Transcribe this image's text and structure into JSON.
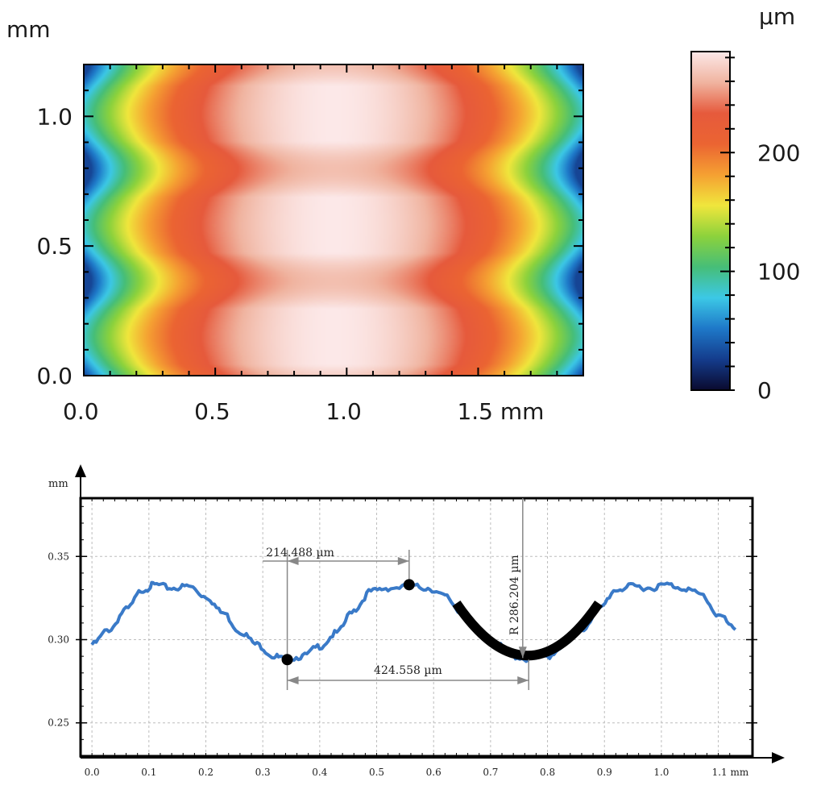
{
  "chart_data": [
    {
      "type": "heatmap",
      "y_unit_label": "mm",
      "x_axis": {
        "tick_labels": [
          "0.0",
          "0.5",
          "1.0",
          "1.5 mm"
        ],
        "ticks": [
          0.0,
          0.5,
          1.0,
          1.5
        ],
        "range": [
          0.0,
          1.9
        ]
      },
      "y_axis": {
        "tick_labels": [
          "0.0",
          "0.5",
          "1.0"
        ],
        "ticks": [
          0.0,
          0.5,
          1.0
        ],
        "range": [
          0.0,
          1.2
        ]
      },
      "colorbar": {
        "unit_label": "µm",
        "tick_labels": [
          "0",
          "100",
          "200"
        ],
        "ticks": [
          0,
          100,
          200
        ],
        "range": [
          0,
          285
        ]
      },
      "color_stops": [
        "#0a0a2e",
        "#143c8c",
        "#1e78c8",
        "#3cc8e6",
        "#46be78",
        "#8cd23c",
        "#f0e63c",
        "#f5a032",
        "#eb6432",
        "#e65a3c",
        "#f0b4a0",
        "#fce8e8"
      ],
      "surface": {
        "description_values": {
          "edge_height_um": 30,
          "peak_height_um": 285,
          "peak_x_mm": 0.95,
          "bump_rows_y_mm": [
            0.15,
            0.55,
            1.0
          ],
          "row_valley_y_mm": [
            0.35,
            0.8
          ]
        }
      }
    },
    {
      "type": "line",
      "y_unit_label": "mm",
      "x_unit_label": "1.1 mm",
      "x_axis": {
        "tick_labels": [
          "0.0",
          "0.1",
          "0.2",
          "0.3",
          "0.4",
          "0.5",
          "0.6",
          "0.7",
          "0.8",
          "0.9",
          "1.0"
        ],
        "ticks": [
          0.0,
          0.1,
          0.2,
          0.3,
          0.4,
          0.5,
          0.6,
          0.7,
          0.8,
          0.9,
          1.0,
          1.1
        ],
        "range": [
          -0.02,
          1.16
        ]
      },
      "y_axis": {
        "tick_labels": [
          "0.25",
          "0.30",
          "0.35"
        ],
        "ticks": [
          0.25,
          0.3,
          0.35
        ],
        "range": [
          0.23,
          0.385
        ]
      },
      "grid": true,
      "series": [
        {
          "x": [
            0.0,
            0.03,
            0.06,
            0.09,
            0.11,
            0.14,
            0.17,
            0.2,
            0.23,
            0.26,
            0.29,
            0.32,
            0.34,
            0.37,
            0.4,
            0.43,
            0.46,
            0.49,
            0.52,
            0.56,
            0.59,
            0.62,
            0.65,
            0.68,
            0.71,
            0.74,
            0.77,
            0.8,
            0.83,
            0.86,
            0.89,
            0.92,
            0.95,
            0.98,
            1.01,
            1.04,
            1.07,
            1.1,
            1.13
          ],
          "y": [
            0.297,
            0.306,
            0.318,
            0.33,
            0.333,
            0.331,
            0.332,
            0.326,
            0.316,
            0.305,
            0.297,
            0.29,
            0.288,
            0.29,
            0.296,
            0.304,
            0.318,
            0.329,
            0.331,
            0.332,
            0.331,
            0.326,
            0.316,
            0.305,
            0.297,
            0.29,
            0.288,
            0.29,
            0.297,
            0.306,
            0.318,
            0.33,
            0.332,
            0.331,
            0.333,
            0.331,
            0.327,
            0.315,
            0.306
          ],
          "color": "#3a7ac8"
        }
      ],
      "fit_arc": {
        "x": [
          0.64,
          0.89
        ],
        "center_x": 0.765,
        "bottom_y": 0.288,
        "color": "#000000"
      },
      "markers": [
        {
          "x": 0.343,
          "y": 0.288
        },
        {
          "x": 0.557,
          "y": 0.333
        }
      ],
      "annotations": [
        {
          "text": "214.488 µm",
          "from_x": 0.343,
          "to_x": 0.557
        },
        {
          "text": "424.558 µm",
          "from_x": 0.343,
          "to_x": 0.767
        },
        {
          "text": "R 286.204 µm",
          "x": 0.765
        }
      ]
    }
  ]
}
